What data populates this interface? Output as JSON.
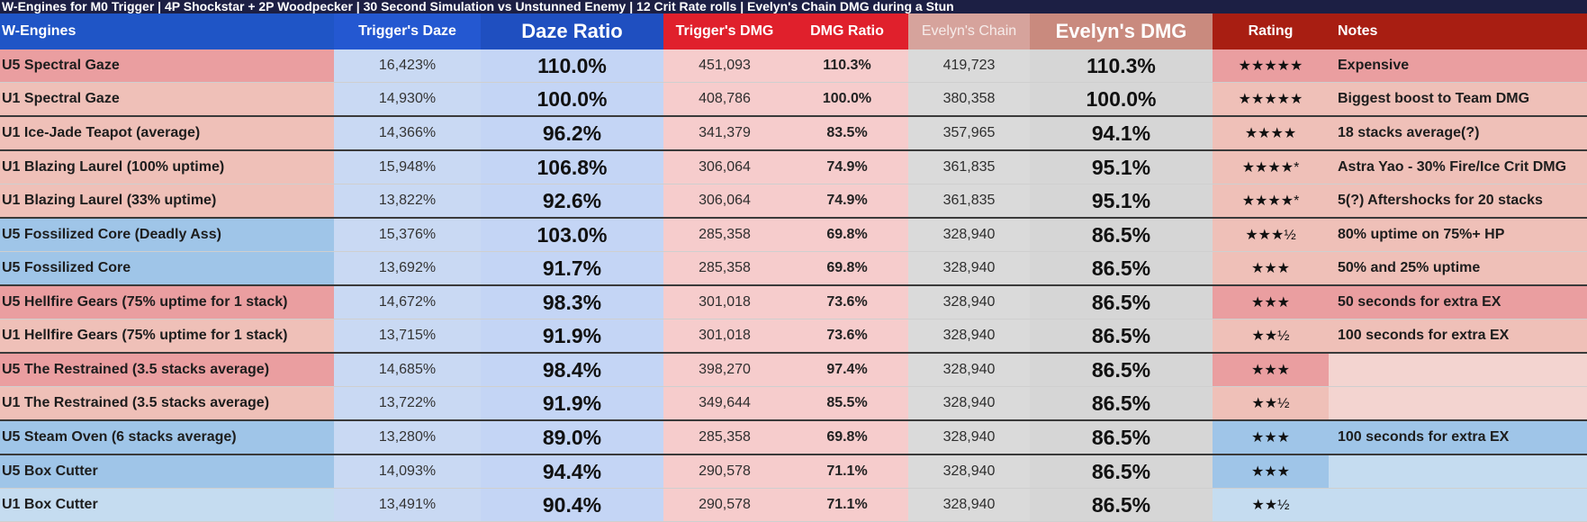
{
  "banner": "W-Engines for M0 Trigger | 4P Shockstar + 2P Woodpecker | 30 Second Simulation vs Unstunned Enemy | 12 Crit Rate rolls | Evelyn's Chain DMG during a Stun",
  "headers": [
    "W-Engines",
    "Trigger's Daze",
    "Daze Ratio",
    "Trigger's DMG",
    "DMG Ratio",
    "Evelyn's Chain",
    "Evelyn's DMG",
    "Rating",
    "Notes"
  ],
  "colors": {
    "red": "#ea9ea0",
    "light_red": "#efc0b8",
    "blue": "#9fc5e8",
    "light_blue": "#c5dcf0",
    "pale": "#f3d4d0"
  },
  "rows": [
    {
      "engine": "U5 Spectral Gaze",
      "daze": "16,423%",
      "daze_ratio": "110.0%",
      "dmg": "451,093",
      "dmg_ratio": "110.3%",
      "chain": "419,723",
      "evelyn": "110.3%",
      "rating": "★★★★★",
      "notes": "Expensive",
      "name_bg": "red",
      "rating_bg": "red",
      "notes_bg": "red"
    },
    {
      "engine": "U1 Spectral Gaze",
      "daze": "14,930%",
      "daze_ratio": "100.0%",
      "dmg": "408,786",
      "dmg_ratio": "100.0%",
      "chain": "380,358",
      "evelyn": "100.0%",
      "rating": "★★★★★",
      "notes": "Biggest boost to Team DMG",
      "name_bg": "light_red",
      "rating_bg": "light_red",
      "notes_bg": "light_red",
      "group_end": true
    },
    {
      "engine": "U1 Ice-Jade Teapot (average)",
      "daze": "14,366%",
      "daze_ratio": "96.2%",
      "dmg": "341,379",
      "dmg_ratio": "83.5%",
      "chain": "357,965",
      "evelyn": "94.1%",
      "rating": "★★★★",
      "notes": "18 stacks average(?)",
      "name_bg": "light_red",
      "rating_bg": "light_red",
      "notes_bg": "light_red",
      "group_end": true
    },
    {
      "engine": "U1 Blazing Laurel (100% uptime)",
      "daze": "15,948%",
      "daze_ratio": "106.8%",
      "dmg": "306,064",
      "dmg_ratio": "74.9%",
      "chain": "361,835",
      "evelyn": "95.1%",
      "rating": "★★★★*",
      "notes": "Astra Yao - 30% Fire/Ice Crit DMG",
      "name_bg": "light_red",
      "rating_bg": "light_red",
      "notes_bg": "light_red"
    },
    {
      "engine": "U1 Blazing Laurel (33% uptime)",
      "daze": "13,822%",
      "daze_ratio": "92.6%",
      "dmg": "306,064",
      "dmg_ratio": "74.9%",
      "chain": "361,835",
      "evelyn": "95.1%",
      "rating": "★★★★*",
      "notes": "5(?) Aftershocks for 20 stacks",
      "name_bg": "light_red",
      "rating_bg": "light_red",
      "notes_bg": "light_red",
      "group_end": true
    },
    {
      "engine": "U5 Fossilized Core (Deadly Ass)",
      "daze": "15,376%",
      "daze_ratio": "103.0%",
      "dmg": "285,358",
      "dmg_ratio": "69.8%",
      "chain": "328,940",
      "evelyn": "86.5%",
      "rating": "★★★½",
      "notes": "80% uptime on 75%+ HP",
      "name_bg": "blue",
      "rating_bg": "light_red",
      "notes_bg": "light_red"
    },
    {
      "engine": "U5 Fossilized Core",
      "daze": "13,692%",
      "daze_ratio": "91.7%",
      "dmg": "285,358",
      "dmg_ratio": "69.8%",
      "chain": "328,940",
      "evelyn": "86.5%",
      "rating": "★★★",
      "notes": "50% and 25% uptime",
      "name_bg": "blue",
      "rating_bg": "light_red",
      "notes_bg": "light_red",
      "group_end": true
    },
    {
      "engine": "U5 Hellfire Gears (75% uptime for 1 stack)",
      "daze": "14,672%",
      "daze_ratio": "98.3%",
      "dmg": "301,018",
      "dmg_ratio": "73.6%",
      "chain": "328,940",
      "evelyn": "86.5%",
      "rating": "★★★",
      "notes": "50 seconds for extra EX",
      "name_bg": "red",
      "rating_bg": "red",
      "notes_bg": "red"
    },
    {
      "engine": "U1 Hellfire Gears (75% uptime for 1 stack)",
      "daze": "13,715%",
      "daze_ratio": "91.9%",
      "dmg": "301,018",
      "dmg_ratio": "73.6%",
      "chain": "328,940",
      "evelyn": "86.5%",
      "rating": "★★½",
      "notes": "100 seconds for extra EX",
      "name_bg": "light_red",
      "rating_bg": "light_red",
      "notes_bg": "light_red",
      "group_end": true
    },
    {
      "engine": "U5 The Restrained (3.5 stacks average)",
      "daze": "14,685%",
      "daze_ratio": "98.4%",
      "dmg": "398,270",
      "dmg_ratio": "97.4%",
      "chain": "328,940",
      "evelyn": "86.5%",
      "rating": "★★★",
      "notes": "",
      "name_bg": "red",
      "rating_bg": "red",
      "notes_bg": "pale"
    },
    {
      "engine": "U1 The Restrained (3.5 stacks average)",
      "daze": "13,722%",
      "daze_ratio": "91.9%",
      "dmg": "349,644",
      "dmg_ratio": "85.5%",
      "chain": "328,940",
      "evelyn": "86.5%",
      "rating": "★★½",
      "notes": "",
      "name_bg": "light_red",
      "rating_bg": "light_red",
      "notes_bg": "pale",
      "group_end": true
    },
    {
      "engine": "U5 Steam Oven (6 stacks average)",
      "daze": "13,280%",
      "daze_ratio": "89.0%",
      "dmg": "285,358",
      "dmg_ratio": "69.8%",
      "chain": "328,940",
      "evelyn": "86.5%",
      "rating": "★★★",
      "notes": "100 seconds for extra EX",
      "name_bg": "blue",
      "rating_bg": "blue",
      "notes_bg": "blue",
      "group_end": true
    },
    {
      "engine": "U5 Box Cutter",
      "daze": "14,093%",
      "daze_ratio": "94.4%",
      "dmg": "290,578",
      "dmg_ratio": "71.1%",
      "chain": "328,940",
      "evelyn": "86.5%",
      "rating": "★★★",
      "notes": "",
      "name_bg": "blue",
      "rating_bg": "blue",
      "notes_bg": "light_blue"
    },
    {
      "engine": "U1 Box Cutter",
      "daze": "13,491%",
      "daze_ratio": "90.4%",
      "dmg": "290,578",
      "dmg_ratio": "71.1%",
      "chain": "328,940",
      "evelyn": "86.5%",
      "rating": "★★½",
      "notes": "",
      "name_bg": "light_blue",
      "rating_bg": "light_blue",
      "notes_bg": "light_blue"
    }
  ]
}
